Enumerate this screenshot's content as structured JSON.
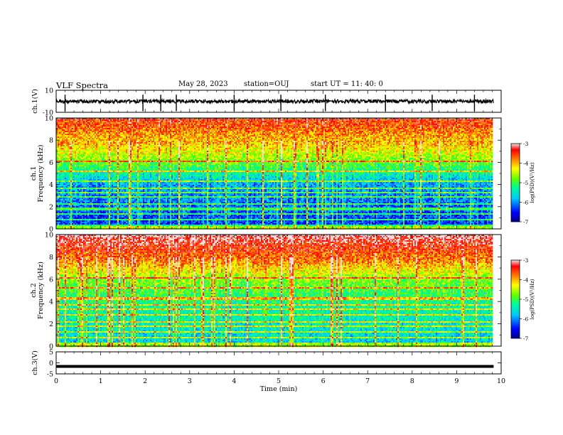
{
  "header": {
    "title": "VLF Spectra",
    "date": "May 28, 2023",
    "station": "station=OUJ",
    "start": "start UT =  11: 40: 0"
  },
  "chart_data": [
    {
      "type": "line",
      "panel": "ch1-waveform",
      "ylabel": "ch.1(V)",
      "ylim": [
        -10,
        10
      ],
      "y_ticks": [
        "10",
        "-10"
      ],
      "x_range": [
        0,
        9.83
      ],
      "baseline_v": 0,
      "spikes_at_min": [
        0.2,
        1.95,
        2.35,
        2.7,
        4.0,
        5.05,
        6.05,
        7.4,
        8.45,
        9.4
      ]
    },
    {
      "type": "heatmap",
      "panel": "ch1-spectrogram",
      "ylabel": "ch.1\nFrequency (kHz)",
      "ylim": [
        0,
        10
      ],
      "y_ticks": [
        "0",
        "2",
        "4",
        "6",
        "8",
        "10"
      ],
      "x_range": [
        0,
        9.83
      ],
      "colorbar": {
        "label": "log(PSD)(V²/Hz)",
        "range": [
          -7,
          -3
        ],
        "ticks": [
          "-3",
          "-4",
          "-5",
          "-6",
          "-7"
        ]
      },
      "description_levels": {
        "0-4kHz": -6.5,
        "4-6kHz": -5,
        "6-8kHz": -4.2,
        "8-10kHz": -3.5
      }
    },
    {
      "type": "heatmap",
      "panel": "ch2-spectrogram",
      "ylabel": "ch.2\nFrequency (kHz)",
      "ylim": [
        0,
        10
      ],
      "y_ticks": [
        "0",
        "2",
        "4",
        "6",
        "8",
        "10"
      ],
      "x_range": [
        0,
        9.83
      ],
      "colorbar": {
        "label": "log(PSD)(V²/Hz)",
        "range": [
          -7,
          -3
        ],
        "ticks": [
          "-3",
          "-4",
          "-5",
          "-6",
          "-7"
        ]
      },
      "description_levels": {
        "0-4kHz": -5.7,
        "4-6kHz": -4.8,
        "6-8kHz": -3.8,
        "8-10kHz": -3.2
      }
    },
    {
      "type": "line",
      "panel": "ch3-waveform",
      "ylabel": "ch.3(V)",
      "ylim": [
        -5,
        5
      ],
      "y_ticks": [
        "5",
        "0",
        "-5"
      ],
      "x_range": [
        0,
        9.83
      ],
      "constant_value_v": 0
    }
  ],
  "x_axis": {
    "label": "Time (min)",
    "ticks": [
      "0",
      "1",
      "2",
      "3",
      "4",
      "5",
      "6",
      "7",
      "8",
      "9",
      "10"
    ],
    "range": [
      0,
      10
    ]
  },
  "colors": {
    "waveform": "#000000",
    "colormap": [
      "#00008b",
      "#0000ff",
      "#00bfff",
      "#00ff80",
      "#80ff00",
      "#ffff00",
      "#ff8000",
      "#ff0000",
      "#ffffff"
    ]
  }
}
